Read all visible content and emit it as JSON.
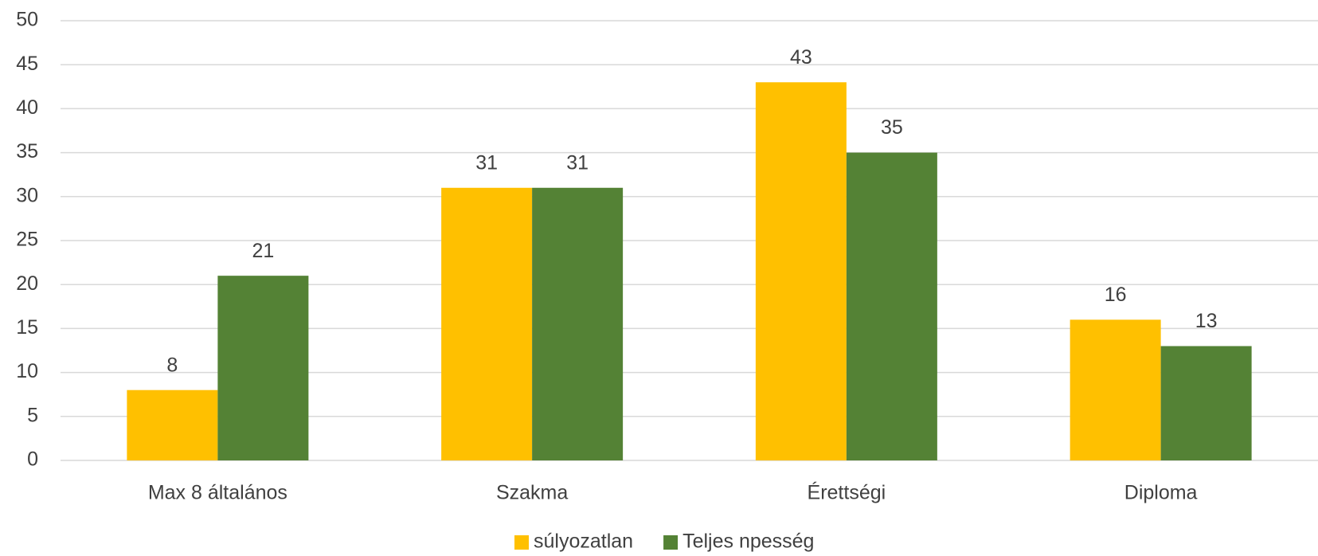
{
  "chart_data": {
    "type": "bar",
    "categories": [
      "Max 8 általános",
      "Szakma",
      "Érettségi",
      "Diploma"
    ],
    "series": [
      {
        "name": "súlyozatlan",
        "color": "#ffc000",
        "values": [
          8,
          31,
          43,
          16
        ]
      },
      {
        "name": "Teljes npesség",
        "color": "#548235",
        "values": [
          21,
          31,
          35,
          13
        ]
      }
    ],
    "ylim": [
      0,
      50
    ],
    "yticks": [
      0,
      5,
      10,
      15,
      20,
      25,
      30,
      35,
      40,
      45,
      50
    ],
    "grid": true,
    "legend": "bottom"
  }
}
